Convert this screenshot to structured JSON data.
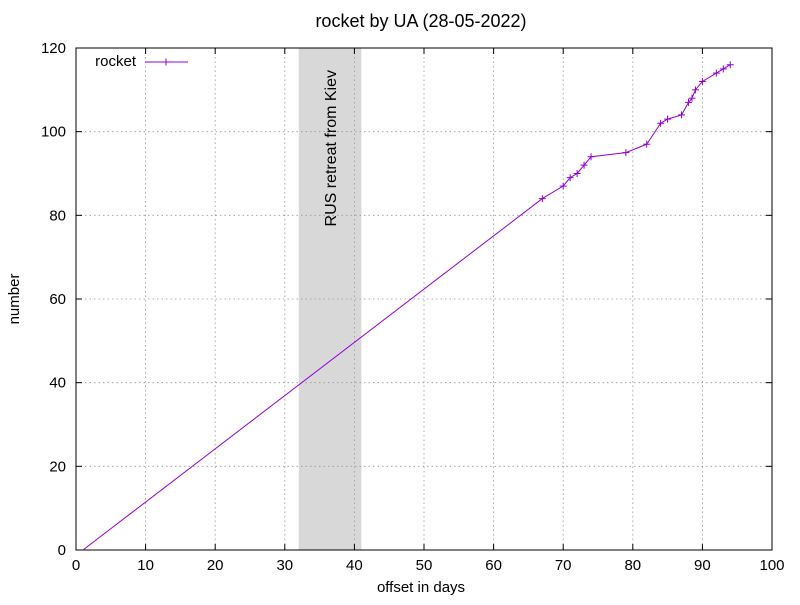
{
  "chart_data": {
    "type": "line",
    "title": "rocket by UA (28-05-2022)",
    "xlabel": "offset in days",
    "ylabel": "number",
    "xlim": [
      0,
      100
    ],
    "ylim": [
      0,
      120
    ],
    "xticks": [
      0,
      10,
      20,
      30,
      40,
      50,
      60,
      70,
      80,
      90,
      100
    ],
    "yticks": [
      0,
      20,
      40,
      60,
      80,
      100,
      120
    ],
    "grid": true,
    "legend_position": "top-left",
    "annotation": {
      "text": "RUS retreat from Kiev",
      "x_start": 32,
      "x_end": 41,
      "color": "#d8d8d8"
    },
    "series": [
      {
        "name": "rocket",
        "color": "#9400d3",
        "x": [
          1,
          67,
          70,
          71,
          72,
          73,
          74,
          79,
          82,
          84,
          85,
          87,
          88,
          88.5,
          89,
          90,
          92,
          93,
          94
        ],
        "y": [
          0,
          84,
          87,
          89,
          90,
          92,
          94,
          95,
          97,
          102,
          103,
          104,
          107,
          108,
          110,
          112,
          114,
          115,
          116
        ],
        "markers": [
          false,
          true,
          true,
          true,
          true,
          true,
          true,
          true,
          true,
          true,
          true,
          true,
          true,
          true,
          true,
          true,
          true,
          true,
          true
        ]
      }
    ]
  }
}
